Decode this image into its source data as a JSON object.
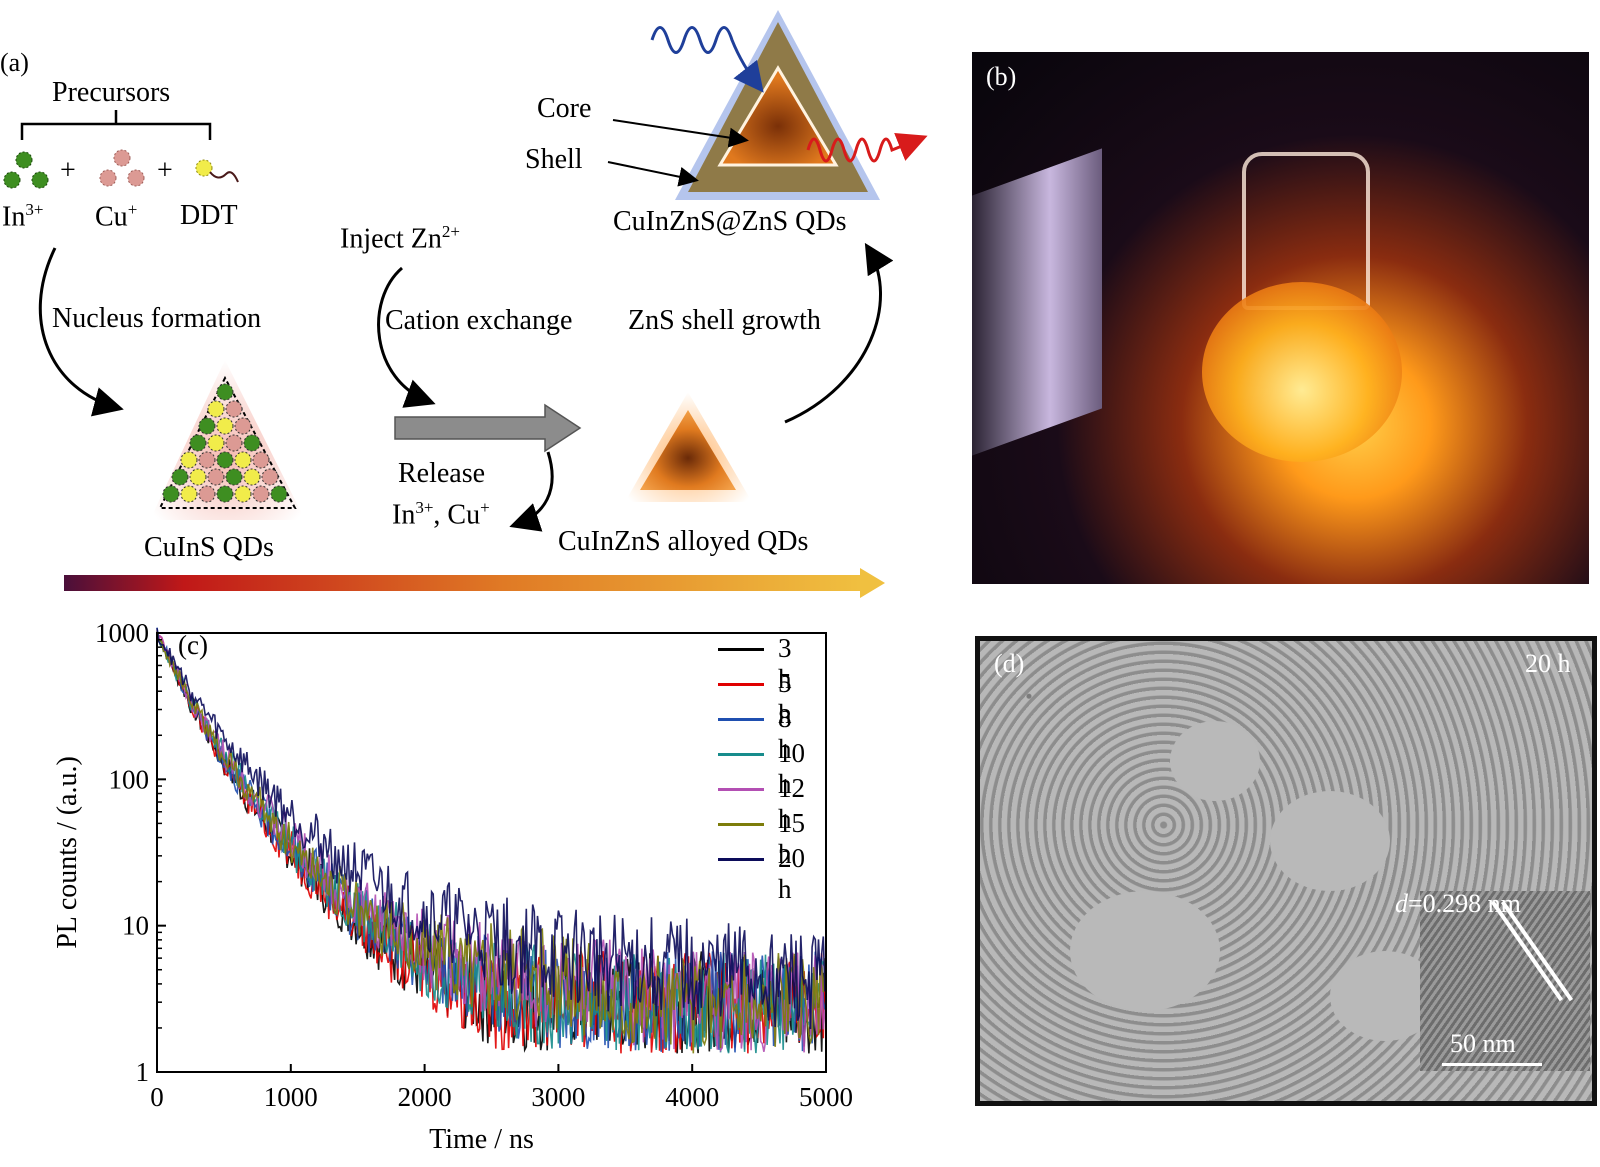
{
  "panel_a": {
    "letter": "(a)",
    "precursors": "Precursors",
    "plus": "+",
    "in_label": "In",
    "in_sup": "3+",
    "cu_label": "Cu",
    "cu_sup": "+",
    "ddt_label": "DDT",
    "nucleus_formation": "Nucleus formation",
    "culns_qds": "CuInS QDs",
    "inject": "Inject Zn",
    "inject_sup": "2+",
    "cation_exchange": "Cation exchange",
    "release": "Release",
    "release_in": "In",
    "release_in_sup": "3+",
    "release_cu": ", Cu",
    "release_cu_sup": "+",
    "zns_shell_growth": "ZnS shell growth",
    "alloyed_qds": "CuInZnS alloyed QDs",
    "core": "Core",
    "shell": "Shell",
    "core_shell_qds": "CuInZnS@ZnS QDs",
    "colors": {
      "in": "#3e8e21",
      "cu": "#dc9a94",
      "ddt": "#f1ec4a",
      "gradient_start": "#4a0f3a",
      "gradient_mid": "#e07a25",
      "gradient_end": "#f0c040",
      "qd_core": "#e07a1f",
      "shell_glow": "#5a7fd6"
    }
  },
  "panel_b": {
    "letter": "(b)"
  },
  "panel_d": {
    "letter": "(d)",
    "time": "20 h",
    "d_prefix": "d",
    "d_value": "=0.298 nm",
    "scale": "50 nm"
  },
  "chart_data": {
    "type": "line",
    "letter": "(c)",
    "xlabel": "Time / ns",
    "ylabel": "PL counts / (a.u.)",
    "xlim": [
      0,
      5000
    ],
    "ylim": [
      1,
      1000
    ],
    "yscale": "log",
    "xticks": [
      0,
      1000,
      2000,
      3000,
      4000,
      5000
    ],
    "yticks": [
      1,
      10,
      100,
      1000
    ],
    "ytick_labels": [
      "1",
      "10",
      "100",
      "1000"
    ],
    "legend_position": "top-right",
    "series": [
      {
        "name": "3 h",
        "color": "#000000",
        "points": [
          [
            0,
            1000
          ],
          [
            250,
            330
          ],
          [
            500,
            130
          ],
          [
            750,
            60
          ],
          [
            1000,
            32
          ],
          [
            1250,
            18
          ],
          [
            1500,
            11
          ],
          [
            1750,
            7
          ],
          [
            2000,
            5
          ],
          [
            2500,
            3
          ],
          [
            3000,
            3
          ],
          [
            4000,
            3
          ],
          [
            5000,
            3
          ]
        ]
      },
      {
        "name": "5 h",
        "color": "#e00000",
        "points": [
          [
            0,
            1000
          ],
          [
            250,
            330
          ],
          [
            500,
            130
          ],
          [
            750,
            60
          ],
          [
            1000,
            32
          ],
          [
            1250,
            18
          ],
          [
            1500,
            11
          ],
          [
            1750,
            7
          ],
          [
            2000,
            5
          ],
          [
            2500,
            3
          ],
          [
            3000,
            3
          ],
          [
            4000,
            3
          ],
          [
            5000,
            3
          ]
        ]
      },
      {
        "name": "8 h",
        "color": "#1f4fb0",
        "points": [
          [
            0,
            1000
          ],
          [
            250,
            340
          ],
          [
            500,
            140
          ],
          [
            750,
            64
          ],
          [
            1000,
            34
          ],
          [
            1250,
            20
          ],
          [
            1500,
            12
          ],
          [
            1750,
            8
          ],
          [
            2000,
            6
          ],
          [
            2500,
            4
          ],
          [
            3000,
            3
          ],
          [
            4000,
            3
          ],
          [
            5000,
            3
          ]
        ]
      },
      {
        "name": "10 h",
        "color": "#178c8c",
        "points": [
          [
            0,
            1000
          ],
          [
            250,
            345
          ],
          [
            500,
            145
          ],
          [
            750,
            68
          ],
          [
            1000,
            36
          ],
          [
            1250,
            21
          ],
          [
            1500,
            13
          ],
          [
            1750,
            9
          ],
          [
            2000,
            6
          ],
          [
            2500,
            4
          ],
          [
            3000,
            3
          ],
          [
            4000,
            3
          ],
          [
            5000,
            3
          ]
        ]
      },
      {
        "name": "12 h",
        "color": "#b34fb3",
        "points": [
          [
            0,
            1000
          ],
          [
            250,
            350
          ],
          [
            500,
            150
          ],
          [
            750,
            72
          ],
          [
            1000,
            39
          ],
          [
            1250,
            23
          ],
          [
            1500,
            14
          ],
          [
            1750,
            10
          ],
          [
            2000,
            7
          ],
          [
            2500,
            5
          ],
          [
            3000,
            4
          ],
          [
            4000,
            3
          ],
          [
            5000,
            3
          ]
        ]
      },
      {
        "name": "15 h",
        "color": "#7d7d0a",
        "points": [
          [
            0,
            1000
          ],
          [
            250,
            345
          ],
          [
            500,
            145
          ],
          [
            750,
            70
          ],
          [
            1000,
            37
          ],
          [
            1250,
            22
          ],
          [
            1500,
            13
          ],
          [
            1750,
            9
          ],
          [
            2000,
            7
          ],
          [
            2500,
            5
          ],
          [
            3000,
            4
          ],
          [
            4000,
            3
          ],
          [
            5000,
            3
          ]
        ]
      },
      {
        "name": "20 h",
        "color": "#0c0c5a",
        "points": [
          [
            0,
            1000
          ],
          [
            250,
            400
          ],
          [
            500,
            190
          ],
          [
            750,
            100
          ],
          [
            1000,
            58
          ],
          [
            1250,
            35
          ],
          [
            1500,
            23
          ],
          [
            1750,
            16
          ],
          [
            2000,
            12
          ],
          [
            2500,
            8
          ],
          [
            3000,
            6
          ],
          [
            4000,
            5
          ],
          [
            5000,
            4
          ]
        ]
      }
    ]
  }
}
